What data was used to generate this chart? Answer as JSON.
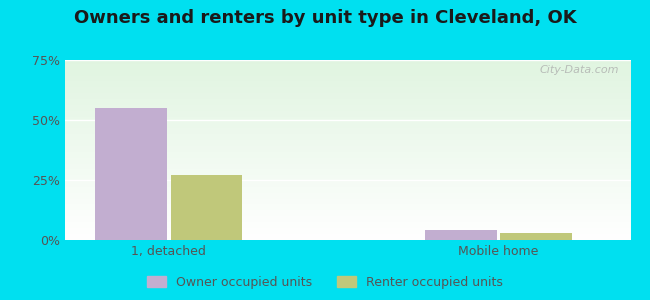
{
  "title": "Owners and renters by unit type in Cleveland, OK",
  "categories": [
    "1, detached",
    "Mobile home"
  ],
  "series": [
    {
      "label": "Owner occupied units",
      "color": "#c2aed0",
      "values": [
        55.0,
        4.0
      ]
    },
    {
      "label": "Renter occupied units",
      "color": "#c0c87a",
      "values": [
        27.0,
        3.0
      ]
    }
  ],
  "ylim": [
    0,
    75
  ],
  "yticks": [
    0,
    25,
    50,
    75
  ],
  "ytick_labels": [
    "0%",
    "25%",
    "50%",
    "75%"
  ],
  "bar_width": 0.38,
  "outer_bg": "#00e0f0",
  "watermark": "City-Data.com",
  "title_fontsize": 13,
  "tick_fontsize": 9,
  "legend_fontsize": 9,
  "group_positions": [
    0.55,
    2.3
  ],
  "xlim": [
    0,
    3.0
  ]
}
